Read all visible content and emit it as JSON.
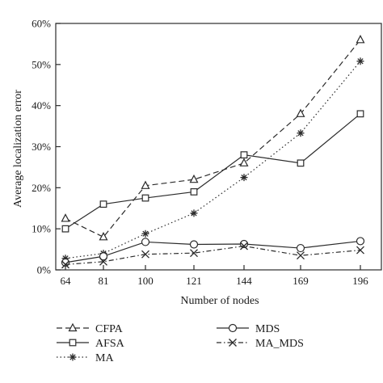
{
  "chart_data": {
    "type": "line",
    "title": "",
    "xlabel": "Number of nodes",
    "ylabel": "Average localization error",
    "x": [
      64,
      81,
      100,
      121,
      144,
      169,
      196
    ],
    "x_tick_labels": [
      "64",
      "81",
      "100",
      "121",
      "144",
      "169",
      "196"
    ],
    "ylim": [
      0,
      0.6
    ],
    "y_ticks": [
      0,
      0.1,
      0.2,
      0.3,
      0.4,
      0.5,
      0.6
    ],
    "y_tick_labels": [
      "0%",
      "10%",
      "20%",
      "30%",
      "40%",
      "50%",
      "60%"
    ],
    "grid": false,
    "legend_placement": "bottom",
    "series": [
      {
        "name": "CFPA",
        "marker": "triangle",
        "dash": "dashed",
        "values": [
          0.125,
          0.08,
          0.205,
          0.22,
          0.26,
          0.38,
          0.56
        ]
      },
      {
        "name": "AFSA",
        "marker": "square",
        "dash": "solid",
        "values": [
          0.1,
          0.16,
          0.175,
          0.19,
          0.28,
          0.26,
          0.38
        ]
      },
      {
        "name": "MA",
        "marker": "asterisk",
        "dash": "dotted",
        "values": [
          0.028,
          0.04,
          0.088,
          0.138,
          0.225,
          0.333,
          0.508
        ]
      },
      {
        "name": "MDS",
        "marker": "circle",
        "dash": "solid",
        "values": [
          0.018,
          0.033,
          0.068,
          0.062,
          0.063,
          0.053,
          0.07
        ]
      },
      {
        "name": "MA_MDS",
        "marker": "cross",
        "dash": "dash-dot",
        "values": [
          0.013,
          0.02,
          0.038,
          0.041,
          0.058,
          0.035,
          0.048
        ]
      }
    ],
    "line_color": "#2b2b2b"
  }
}
